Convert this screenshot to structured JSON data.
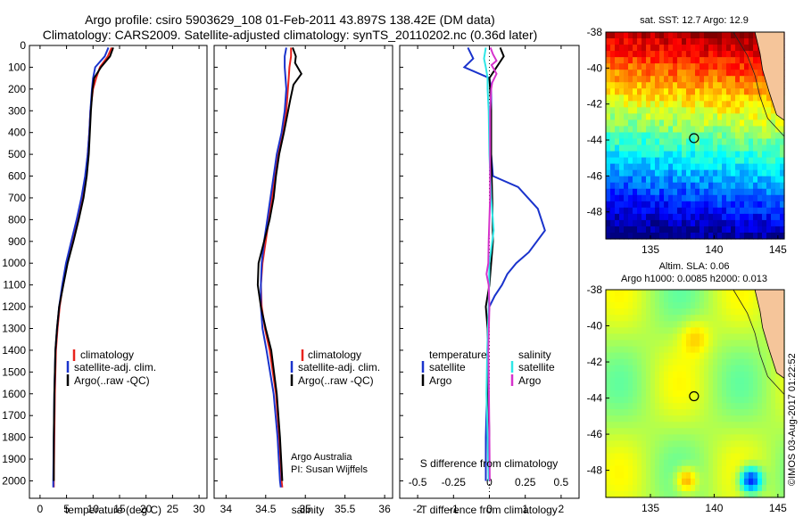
{
  "header": {
    "line1": "Argo profile: csiro 5903629_108 01-Feb-2011 43.897S 138.42E (DM data)",
    "line2": "Climatology: CARS2009. Satellite-adjusted climatology: synTS_20110202.nc (0.36d later)"
  },
  "colors": {
    "climatology": "#e8231d",
    "satellite": "#1a33cc",
    "argo": "#000000",
    "sal_satellite": "#2ee6e6",
    "sal_argo": "#d633cc"
  },
  "chart_data": [
    {
      "type": "line",
      "name": "temperature-profile",
      "xlabel": "temperature (deg C)",
      "ylabel": "",
      "xlim": [
        -2,
        31.5
      ],
      "ylim": [
        2080,
        0
      ],
      "xticks": [
        0,
        5,
        10,
        15,
        20,
        25,
        30
      ],
      "yticks": [
        0,
        100,
        200,
        300,
        400,
        500,
        600,
        700,
        800,
        900,
        1000,
        1100,
        1200,
        1300,
        1400,
        1500,
        1600,
        1700,
        1800,
        1900,
        2000
      ],
      "legend": {
        "position": "lower-middle",
        "entries": [
          "climatology",
          "satellite-adj. clim.",
          "Argo(..raw -QC)"
        ]
      },
      "series": [
        {
          "name": "climatology",
          "color_key": "climatology",
          "depth": [
            10,
            50,
            100,
            150,
            200,
            300,
            400,
            500,
            600,
            700,
            800,
            900,
            1000,
            1100,
            1200,
            1300,
            1400,
            1600,
            1800,
            2000,
            2030
          ],
          "values": [
            13.5,
            12.8,
            11.3,
            10.6,
            10.0,
            9.5,
            9.3,
            9.0,
            8.6,
            7.9,
            7.0,
            6.0,
            5.0,
            4.3,
            3.7,
            3.3,
            3.0,
            2.8,
            2.7,
            2.6,
            2.6
          ]
        },
        {
          "name": "satellite-adj. clim.",
          "color_key": "satellite",
          "depth": [
            10,
            50,
            100,
            150,
            200,
            300,
            400,
            500,
            600,
            700,
            800,
            900,
            1000,
            1100,
            1200,
            1300,
            1400,
            1600,
            1800,
            2000,
            2030
          ],
          "values": [
            12.9,
            12.2,
            10.4,
            10.0,
            9.8,
            9.5,
            9.3,
            9.0,
            8.5,
            7.8,
            6.9,
            5.9,
            4.9,
            4.2,
            3.6,
            3.2,
            2.9,
            2.7,
            2.6,
            2.5,
            2.5
          ]
        },
        {
          "name": "Argo(..raw -QC)",
          "color_key": "argo",
          "depth": [
            10,
            50,
            100,
            150,
            200,
            300,
            400,
            500,
            600,
            700,
            800,
            900,
            1000,
            1100,
            1200,
            1300,
            1400,
            1600,
            1800,
            2000
          ],
          "values": [
            13.8,
            13.2,
            11.5,
            10.2,
            9.9,
            9.6,
            9.4,
            9.2,
            8.8,
            8.2,
            7.3,
            6.3,
            5.2,
            4.4,
            3.6,
            3.2,
            2.9,
            2.7,
            2.6,
            2.6
          ]
        }
      ]
    },
    {
      "type": "line",
      "name": "salinity-profile",
      "xlabel": "salinity",
      "ylabel": "",
      "xlim": [
        33.85,
        36.1
      ],
      "ylim": [
        2080,
        0
      ],
      "xticks": [
        34,
        34.5,
        35,
        35.5,
        36
      ],
      "legend": {
        "position": "lower-middle",
        "entries": [
          "climatology",
          "satellite-adj. clim.",
          "Argo(..raw -QC)"
        ]
      },
      "series": [
        {
          "name": "climatology",
          "color_key": "climatology",
          "depth": [
            10,
            50,
            100,
            150,
            200,
            300,
            400,
            500,
            600,
            700,
            800,
            900,
            1000,
            1100,
            1200,
            1300,
            1400,
            1600,
            1800,
            2000,
            2030
          ],
          "values": [
            34.82,
            34.82,
            34.8,
            34.79,
            34.78,
            34.76,
            34.72,
            34.66,
            34.62,
            34.58,
            34.54,
            34.5,
            34.46,
            34.44,
            34.45,
            34.49,
            34.55,
            34.63,
            34.67,
            34.7,
            34.71
          ]
        },
        {
          "name": "satellite-adj. clim.",
          "color_key": "satellite",
          "depth": [
            10,
            50,
            100,
            150,
            200,
            300,
            400,
            500,
            600,
            700,
            800,
            900,
            1000,
            1100,
            1200,
            1300,
            1400,
            1600,
            1800,
            2000,
            2030
          ],
          "values": [
            34.76,
            34.74,
            34.74,
            34.75,
            34.76,
            34.74,
            34.7,
            34.64,
            34.6,
            34.56,
            34.52,
            34.48,
            34.45,
            34.44,
            34.44,
            34.46,
            34.51,
            34.6,
            34.65,
            34.68,
            34.69
          ]
        },
        {
          "name": "Argo(..raw -QC)",
          "color_key": "argo",
          "depth": [
            10,
            50,
            80,
            130,
            180,
            250,
            400,
            500,
            600,
            700,
            800,
            900,
            1000,
            1100,
            1200,
            1300,
            1400,
            1600,
            1800,
            2000
          ],
          "values": [
            34.84,
            34.88,
            34.87,
            34.95,
            34.85,
            34.81,
            34.73,
            34.67,
            34.63,
            34.6,
            34.55,
            34.48,
            34.41,
            34.4,
            34.44,
            34.5,
            34.57,
            34.64,
            34.68,
            34.71
          ]
        }
      ]
    },
    {
      "type": "line",
      "name": "difference-from-climatology",
      "xlabel": "T difference from climatology",
      "xlabel_top": "S difference from climatology",
      "ylabel": "",
      "xlim": [
        -2.5,
        2.5
      ],
      "ylim": [
        2080,
        0
      ],
      "xticks": [
        -2,
        -1,
        0,
        1,
        2
      ],
      "xticks_top": [
        "-0.5",
        "-0.25",
        "0",
        "0.25",
        "0.5"
      ],
      "legend": {
        "position": "lower-middle",
        "entries": [
          "temperature",
          "satellite",
          "Argo",
          "salinity",
          "satellite",
          "Argo"
        ]
      },
      "series": [
        {
          "name": "satellite",
          "legend_group": "temperature",
          "color_key": "satellite",
          "depth": [
            10,
            60,
            100,
            150,
            200,
            300,
            500,
            600,
            650,
            750,
            850,
            950,
            1000,
            1050,
            1100,
            1150,
            1200,
            1300,
            1500,
            1800,
            2000
          ],
          "values": [
            -0.6,
            -0.45,
            -0.7,
            0.0,
            0.05,
            0.05,
            0.05,
            0.1,
            0.8,
            1.35,
            1.55,
            1.1,
            0.75,
            0.5,
            0.35,
            0.15,
            0.0,
            -0.05,
            -0.05,
            -0.1,
            -0.1
          ]
        },
        {
          "name": "Argo",
          "legend_group": "temperature",
          "color_key": "argo",
          "depth": [
            10,
            50,
            100,
            150,
            200,
            300,
            500,
            700,
            900,
            1000,
            1100,
            1200,
            1300,
            1500,
            1800,
            2000
          ],
          "values": [
            0.3,
            0.4,
            0.2,
            0.0,
            0.02,
            0.05,
            0.05,
            0.08,
            0.1,
            0.05,
            0.0,
            -0.1,
            -0.05,
            -0.05,
            0.0,
            0.0
          ]
        },
        {
          "name": "satellite",
          "legend_group": "salinity",
          "color_key": "sal_satellite",
          "depth": [
            10,
            60,
            100,
            150,
            200,
            300,
            500,
            700,
            850,
            1000,
            1200,
            1400,
            1600,
            1800,
            2000
          ],
          "values": [
            -0.1,
            -0.15,
            -0.1,
            -0.05,
            -0.05,
            -0.02,
            0.0,
            0.05,
            0.12,
            0.0,
            -0.02,
            -0.06,
            -0.08,
            -0.05,
            -0.02
          ]
        },
        {
          "name": "Argo",
          "legend_group": "salinity",
          "color_key": "sal_argo",
          "depth": [
            10,
            40,
            70,
            90,
            130,
            170,
            200,
            300,
            500,
            700,
            900,
            1000,
            1050,
            1100,
            1200,
            1400,
            1500,
            1800,
            2000
          ],
          "values": [
            0.03,
            0.1,
            0.2,
            0.06,
            0.2,
            0.08,
            0.05,
            0.02,
            0.02,
            0.02,
            -0.02,
            -0.03,
            -0.08,
            -0.02,
            0.0,
            -0.03,
            -0.02,
            0.0,
            0.01
          ]
        }
      ]
    },
    {
      "type": "heatmap",
      "name": "sst-map",
      "title": "sat. SST: 12.7  Argo: 12.9",
      "xlim": [
        131.5,
        145.5
      ],
      "ylim": [
        -49.5,
        -38
      ],
      "xticks": [
        135,
        140,
        145
      ],
      "yticks": [
        -38,
        -40,
        -42,
        -44,
        -46,
        -48
      ],
      "marker": {
        "lon": 138.42,
        "lat": -43.897
      }
    },
    {
      "type": "heatmap",
      "name": "sla-map",
      "title": "Altim. SLA: 0.06",
      "subtitle": "Argo h1000: 0.0085 h2000: 0.013",
      "xlim": [
        131.5,
        145.5
      ],
      "ylim": [
        -49.5,
        -38
      ],
      "xticks": [
        135,
        140,
        145
      ],
      "yticks": [
        -38,
        -40,
        -42,
        -44,
        -46,
        -48
      ],
      "marker": {
        "lon": 138.42,
        "lat": -43.897
      }
    }
  ],
  "panels": {
    "profile_legend": [
      "climatology",
      "satellite-adj. clim.",
      "Argo(..raw -QC)"
    ],
    "diff_legend": {
      "temperature": "temperature",
      "salinity": "salinity",
      "satellite": "satellite",
      "argo": "Argo"
    },
    "annotation": {
      "line1": "Argo Australia",
      "line2": "PI: Susan Wijffels"
    },
    "credit": "©IMOS 03-Aug-2017 01:22:52"
  }
}
